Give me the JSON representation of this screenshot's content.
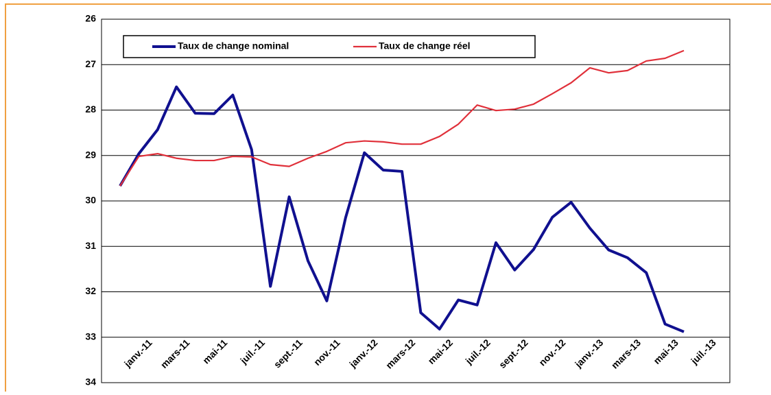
{
  "chart_data": {
    "type": "line",
    "categories": [
      "janv.-11",
      null,
      "mars-11",
      null,
      "mai-11",
      null,
      "juil.-11",
      null,
      "sept.-11",
      null,
      "nov.-11",
      null,
      "janv.-12",
      null,
      "mars-12",
      null,
      "mai-12",
      null,
      "juil.-12",
      null,
      "sept.-12",
      null,
      "nov.-12",
      null,
      "janv.-13",
      null,
      "mars-13",
      null,
      "mai-13",
      null,
      "juil.-13"
    ],
    "series": [
      {
        "name": "Taux de change nominal",
        "color": "#10108f",
        "values": [
          29.67,
          28.96,
          28.43,
          27.49,
          28.07,
          28.08,
          27.67,
          28.87,
          31.88,
          29.91,
          31.32,
          32.2,
          30.37,
          28.94,
          29.32,
          29.35,
          32.46,
          32.82,
          32.18,
          32.29,
          30.92,
          31.52,
          31.07,
          30.36,
          30.03,
          30.6,
          31.08,
          31.25,
          31.58,
          32.71,
          32.88
        ]
      },
      {
        "name": "Taux de change réel",
        "color": "#e0303a",
        "values": [
          29.67,
          29.02,
          28.96,
          29.06,
          29.11,
          29.11,
          29.02,
          29.03,
          29.2,
          29.24,
          29.06,
          28.91,
          28.72,
          28.68,
          28.7,
          28.75,
          28.75,
          28.58,
          28.31,
          27.89,
          28.01,
          27.98,
          27.87,
          27.64,
          27.4,
          27.07,
          27.18,
          27.13,
          26.92,
          26.86,
          26.69
        ]
      }
    ],
    "ylim": [
      26,
      34
    ],
    "yticks": [
      26,
      27,
      28,
      29,
      30,
      31,
      32,
      33,
      34
    ],
    "y_inverted": true,
    "grid": true,
    "legend": "top"
  }
}
